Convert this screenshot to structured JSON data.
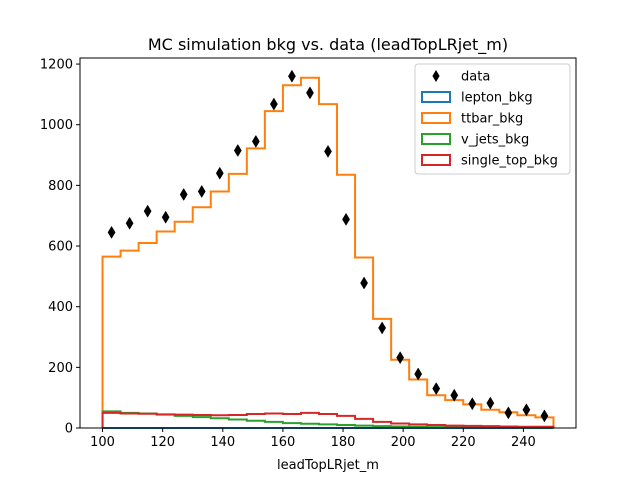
{
  "chart_data": {
    "type": "step-histogram-with-points",
    "title": "MC simulation bkg vs. data (leadTopLRjet_m)",
    "xlabel": "leadTopLRjet_m",
    "ylabel": "",
    "xlim": [
      92.5,
      257.5
    ],
    "ylim": [
      0,
      1220
    ],
    "xticks": [
      100,
      120,
      140,
      160,
      180,
      200,
      220,
      240
    ],
    "yticks": [
      0,
      200,
      400,
      600,
      800,
      1000,
      1200
    ],
    "legend_position": "top-right",
    "bin_edges": [
      100,
      106,
      112,
      118,
      124,
      130,
      136,
      142,
      148,
      154,
      160,
      166,
      172,
      178,
      184,
      190,
      196,
      202,
      208,
      214,
      220,
      226,
      232,
      238,
      244,
      250
    ],
    "series": [
      {
        "name": "lepton_bkg",
        "color": "#1f77b4",
        "values": [
          0,
          0,
          0,
          0,
          0,
          0,
          0,
          0,
          0,
          0,
          0,
          0,
          0,
          0,
          0,
          0,
          0,
          0,
          0,
          0,
          0,
          0,
          0,
          0,
          0
        ]
      },
      {
        "name": "ttbar_bkg",
        "color": "#ff7f0e",
        "values": [
          565,
          585,
          610,
          648,
          680,
          728,
          780,
          838,
          922,
          1045,
          1130,
          1155,
          1068,
          835,
          562,
          360,
          225,
          160,
          108,
          92,
          78,
          60,
          52,
          42,
          35
        ]
      },
      {
        "name": "v_jets_bkg",
        "color": "#2ca02c",
        "values": [
          55,
          50,
          48,
          44,
          40,
          36,
          32,
          28,
          24,
          20,
          16,
          14,
          12,
          10,
          8,
          6,
          5,
          4,
          3,
          3,
          2,
          2,
          2,
          1,
          1
        ]
      },
      {
        "name": "single_top_bkg",
        "color": "#d62728",
        "values": [
          50,
          48,
          47,
          45,
          44,
          43,
          42,
          43,
          46,
          48,
          46,
          50,
          46,
          40,
          30,
          20,
          15,
          12,
          10,
          8,
          7,
          6,
          5,
          4,
          4
        ]
      }
    ],
    "data_points": {
      "name": "data",
      "color": "#000000",
      "x": [
        103,
        109,
        115,
        121,
        127,
        133,
        139,
        145,
        151,
        157,
        163,
        169,
        175,
        181,
        187,
        193,
        199,
        205,
        211,
        217,
        223,
        229,
        235,
        241,
        247
      ],
      "y": [
        645,
        675,
        715,
        695,
        770,
        780,
        840,
        915,
        945,
        1068,
        1160,
        1105,
        912,
        688,
        478,
        330,
        232,
        178,
        130,
        108,
        80,
        82,
        50,
        60,
        40
      ]
    }
  }
}
